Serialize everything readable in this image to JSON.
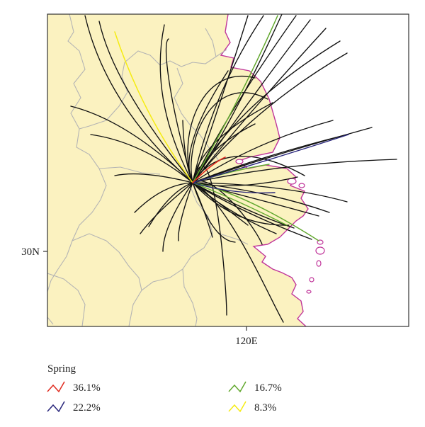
{
  "map": {
    "lat_tick_label": "30N",
    "lon_tick_label": "120E",
    "colors": {
      "land": "#fbf2c0",
      "sea": "#ffffff",
      "province_border": "#b4b4b4",
      "coastline": "#c0359a",
      "frame": "#333333"
    }
  },
  "legend": {
    "season": "Spring",
    "items": [
      {
        "percent": "36.1%",
        "color": "#e02a1e"
      },
      {
        "percent": "22.2%",
        "color": "#27247a"
      },
      {
        "percent": "16.7%",
        "color": "#62a82e"
      },
      {
        "percent": "8.3%",
        "color": "#f5ec12"
      }
    ]
  }
}
